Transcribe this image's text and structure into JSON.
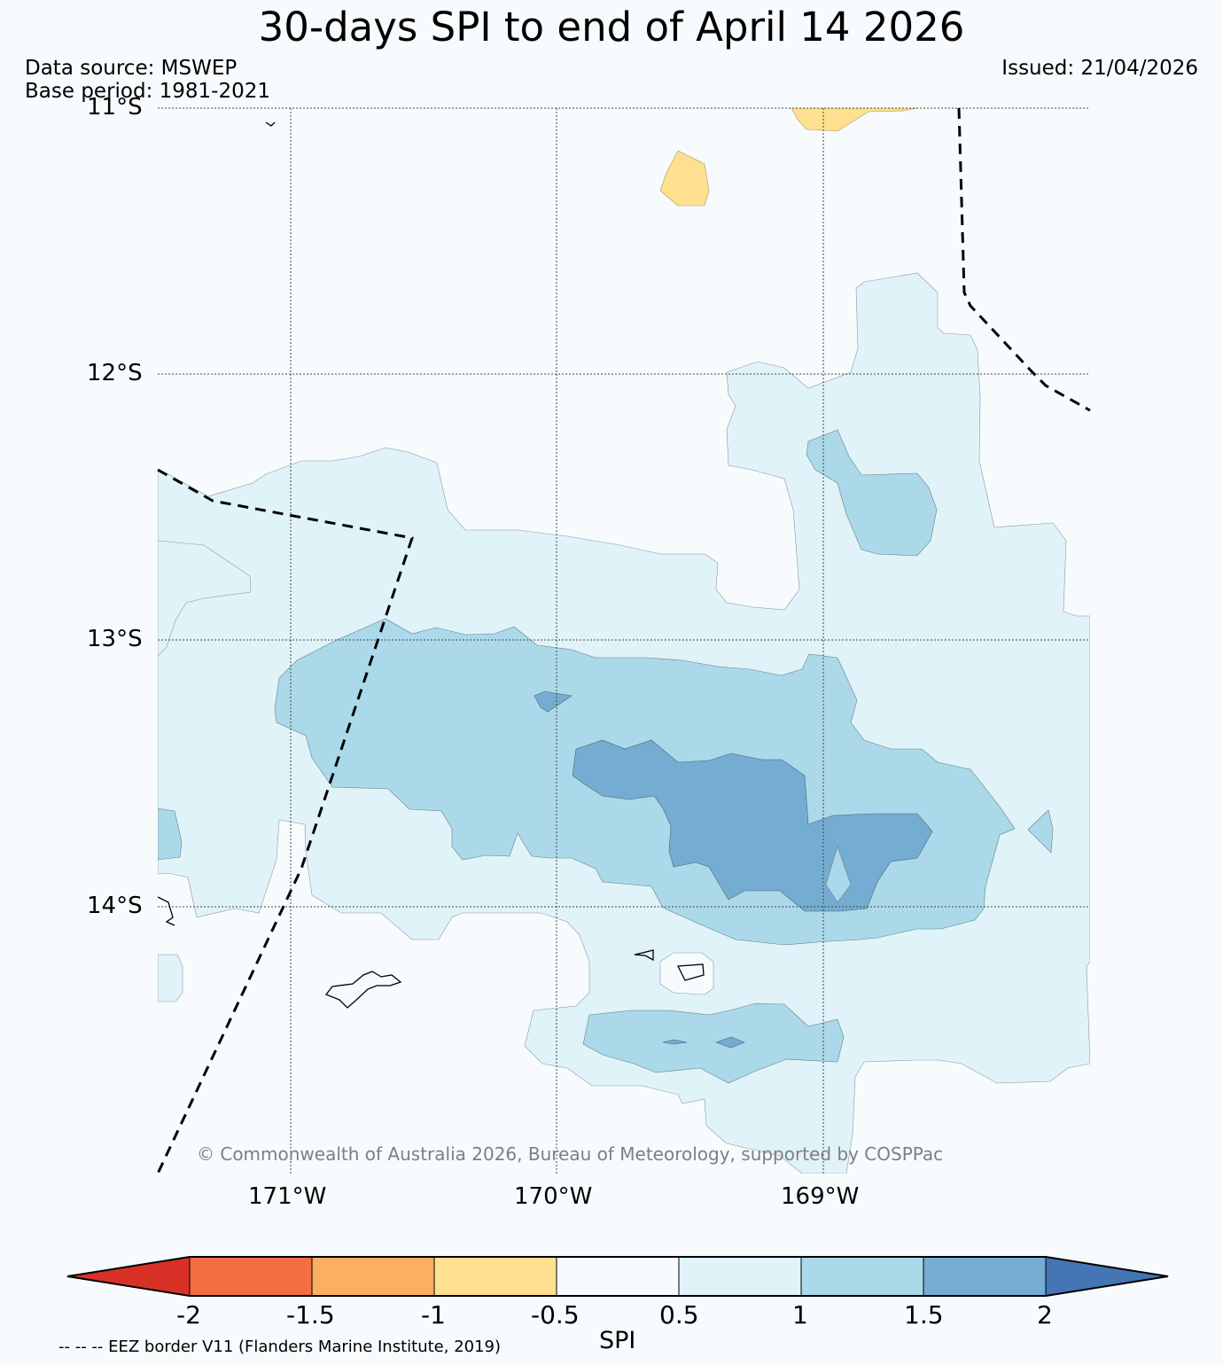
{
  "title": "30-days SPI to end of April 14 2026",
  "data_source": "Data source: MSWEP",
  "base_period": "Base period: 1981-2021",
  "issued": "Issued: 21/04/2026",
  "copyright": "© Commonwealth of Australia 2026, Bureau of Meteorology, supported by COSPPac",
  "eez_note": "-- -- -- EEZ border V11 (Flanders Marine Institute, 2019)",
  "lat_labels": [
    "11°S",
    "12°S",
    "13°S",
    "14°S"
  ],
  "lon_labels": [
    "171°W",
    "170°W",
    "169°W"
  ],
  "colorbar": {
    "title": "SPI",
    "ticks": [
      "-2",
      "-1.5",
      "-1",
      "-0.5",
      "0.5",
      "1",
      "1.5",
      "2"
    ],
    "colors": {
      "lt_m2": "#d73027",
      "m2_m15": "#f46d43",
      "m15_m1": "#fdae61",
      "m1_m05": "#fee090",
      "m05_05": "#f7fbfd",
      "05_1": "#e0f3f8",
      "1_15": "#abd9e9",
      "15_2": "#74add1",
      "gt_2": "#4575b4"
    }
  }
}
